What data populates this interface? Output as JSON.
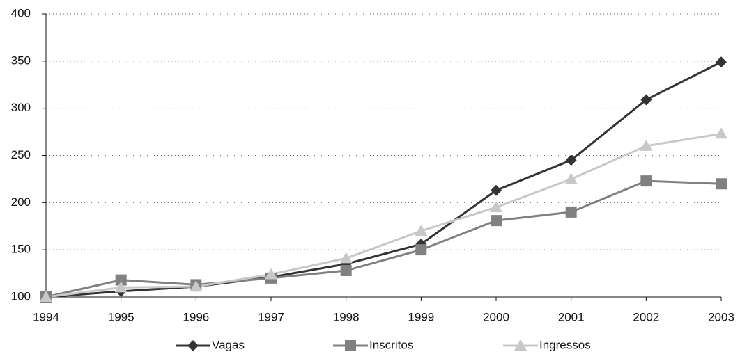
{
  "chart_data": {
    "type": "line",
    "categories": [
      "1994",
      "1995",
      "1996",
      "1997",
      "1998",
      "1999",
      "2000",
      "2001",
      "2002",
      "2003"
    ],
    "series": [
      {
        "name": "Vagas",
        "color": "#333333",
        "marker": "diamond",
        "values": [
          100,
          106,
          111,
          121,
          135,
          156,
          213,
          245,
          309,
          349
        ]
      },
      {
        "name": "Inscritos",
        "color": "#808080",
        "marker": "square",
        "values": [
          100,
          118,
          113,
          120,
          128,
          150,
          181,
          190,
          223,
          220
        ]
      },
      {
        "name": "Ingressos",
        "color": "#c8c8c8",
        "marker": "triangle",
        "values": [
          100,
          110,
          111,
          124,
          141,
          170,
          195,
          225,
          260,
          273
        ]
      }
    ],
    "ylim": [
      100,
      400
    ],
    "yticks": [
      100,
      150,
      200,
      250,
      300,
      350,
      400
    ],
    "grid": true,
    "legend": "bottom"
  }
}
